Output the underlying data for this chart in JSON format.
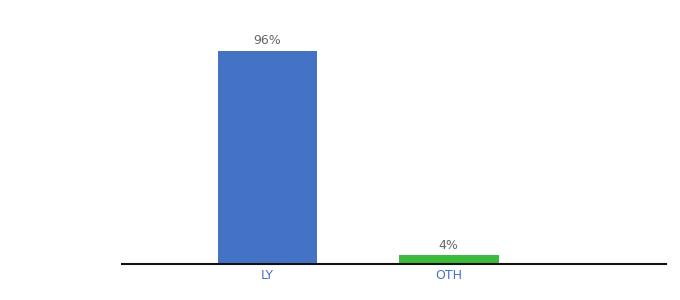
{
  "categories": [
    "LY",
    "OTH"
  ],
  "values": [
    96,
    4
  ],
  "bar_colors": [
    "#4472c4",
    "#3dbb3d"
  ],
  "label_texts": [
    "96%",
    "4%"
  ],
  "background_color": "#ffffff",
  "ylim": [
    0,
    108
  ],
  "bar_width": 0.55,
  "figsize": [
    6.8,
    3.0
  ],
  "dpi": 100,
  "label_fontsize": 9,
  "tick_fontsize": 9,
  "spine_color": "#111111",
  "label_color": "#666666",
  "tick_color": "#4472c4"
}
